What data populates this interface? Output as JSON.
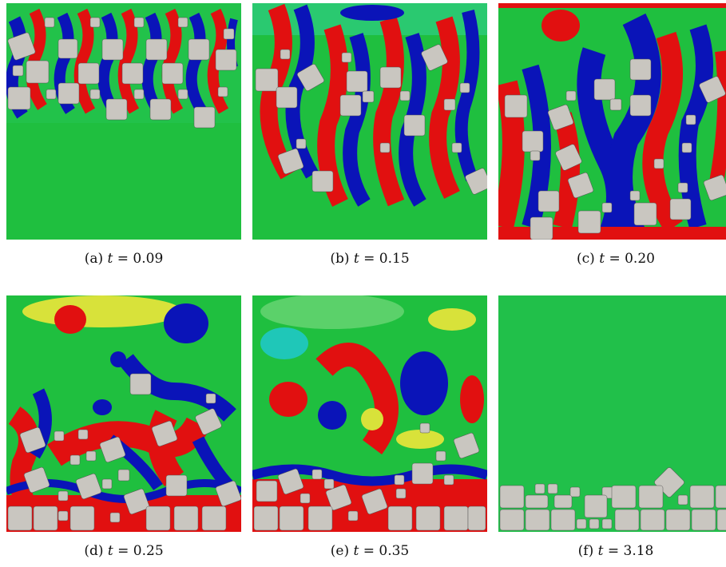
{
  "colors": {
    "green": "#1fbf3f",
    "red": "#e11010",
    "blue": "#0a14b8",
    "cyan": "#1fc7b8",
    "yellow": "#d8e23a",
    "orange": "#f27a1a",
    "particle": "#c9c6c0"
  },
  "panels": [
    {
      "id": "a",
      "caption_label": "(a)",
      "caption_var": "t",
      "caption_eq": "= 0.09"
    },
    {
      "id": "b",
      "caption_label": "(b)",
      "caption_var": "t",
      "caption_eq": "= 0.15"
    },
    {
      "id": "c",
      "caption_label": "(c)",
      "caption_var": "t",
      "caption_eq": "= 0.20"
    },
    {
      "id": "d",
      "caption_label": "(d)",
      "caption_var": "t",
      "caption_eq": "= 0.25"
    },
    {
      "id": "e",
      "caption_label": "(e)",
      "caption_var": "t",
      "caption_eq": "= 0.35"
    },
    {
      "id": "f",
      "caption_label": "(f)",
      "caption_var": "t",
      "caption_eq": "= 3.18"
    }
  ]
}
